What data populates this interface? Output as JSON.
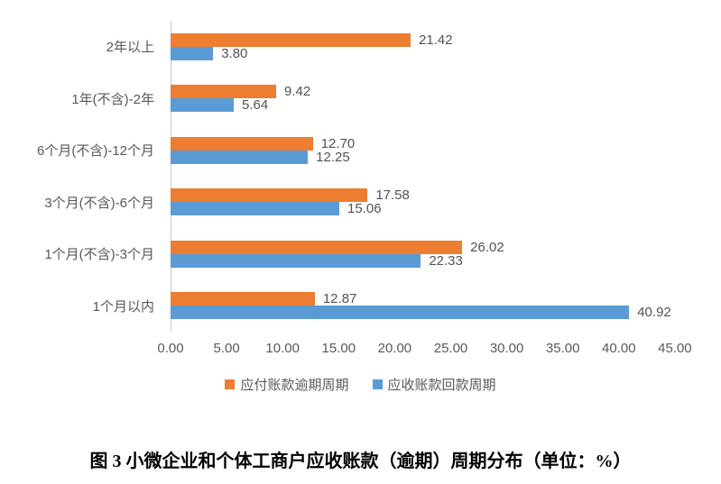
{
  "chart_data": {
    "type": "bar",
    "orientation": "horizontal",
    "categories_order": "top-to-bottom",
    "categories": [
      "2年以上",
      "1年(不含)-2年",
      "6个月(不含)-12个月",
      "3个月(不含)-6个月",
      "1个月(不含)-3个月",
      "1个月以内"
    ],
    "series": [
      {
        "name": "应付账款逾期周期",
        "color": "#ED7D31",
        "values": [
          21.42,
          9.42,
          12.7,
          17.58,
          26.02,
          12.87
        ]
      },
      {
        "name": "应收账款回款周期",
        "color": "#5B9BD5",
        "values": [
          3.8,
          5.64,
          12.25,
          15.06,
          22.33,
          40.92
        ]
      }
    ],
    "xlim": [
      0,
      45
    ],
    "xticks": [
      "0.00",
      "5.00",
      "10.00",
      "15.00",
      "20.00",
      "25.00",
      "30.00",
      "35.00",
      "40.00",
      "45.00"
    ],
    "data_labels": true,
    "value_label_format": "0.00",
    "grid": false,
    "legend_position": "bottom"
  },
  "caption": "图 3 小微企业和个体工商户应收账款（逾期）周期分布（单位：%）"
}
